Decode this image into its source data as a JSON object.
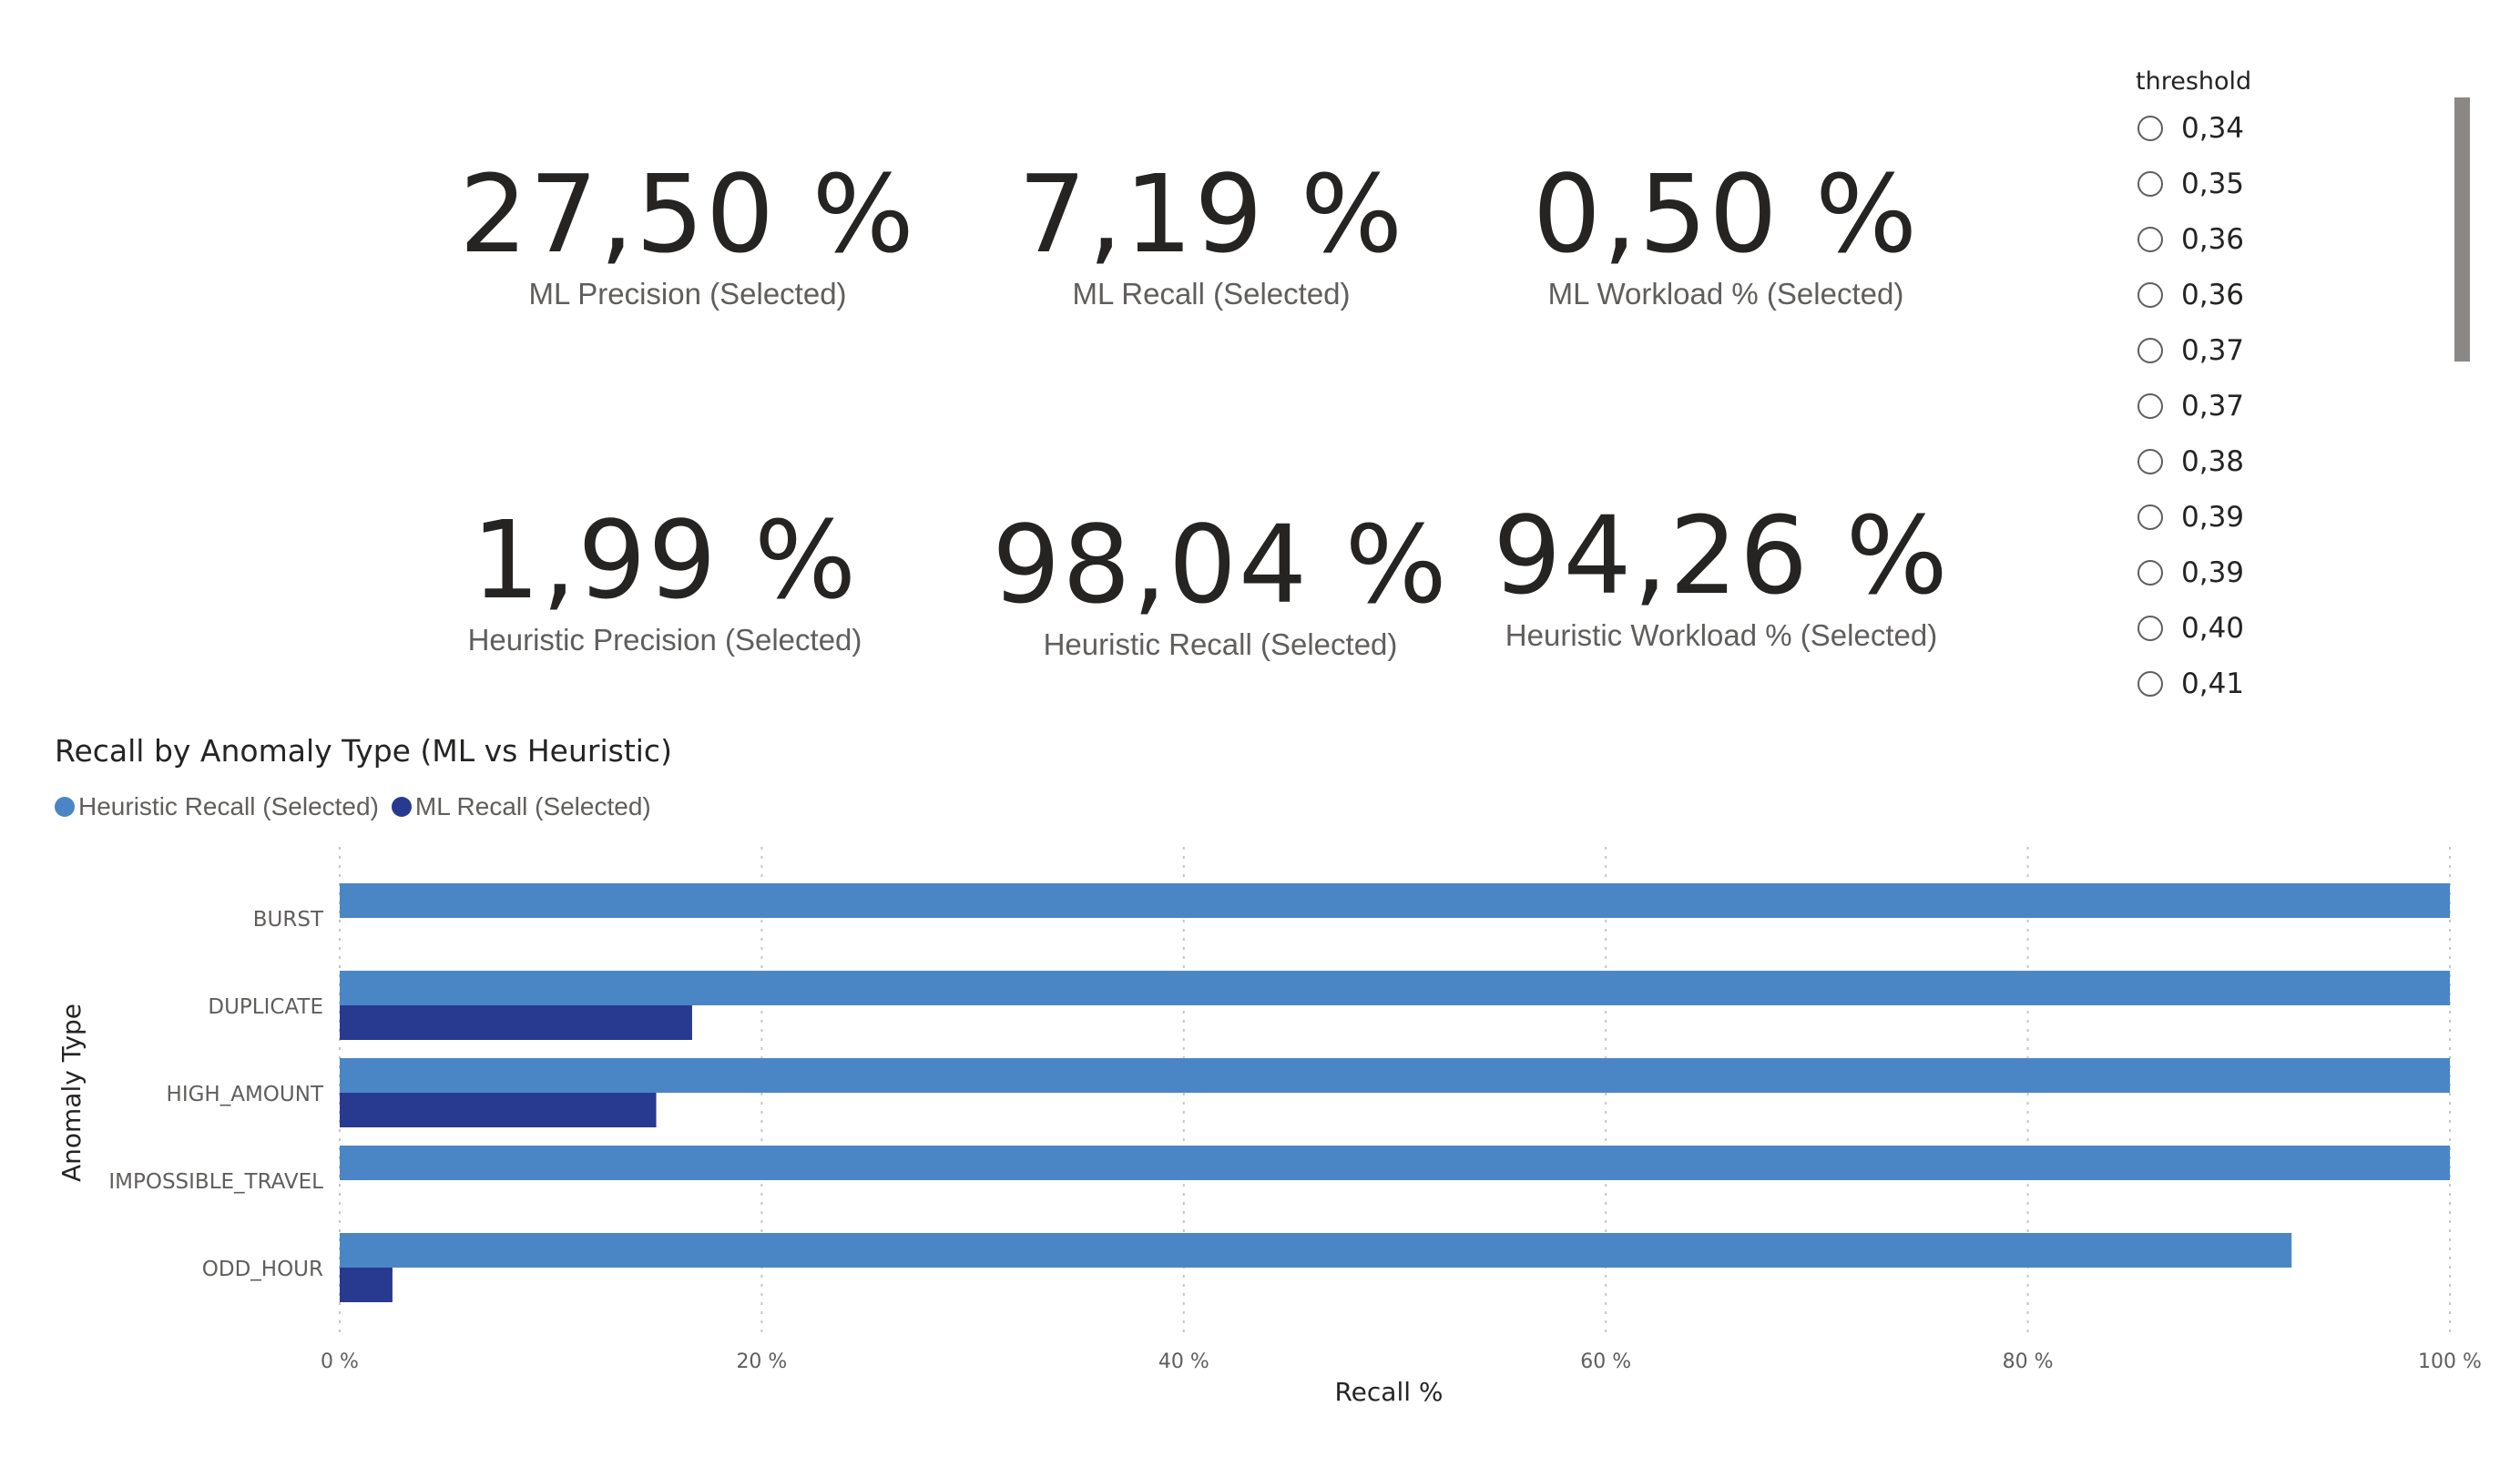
{
  "kpis": [
    {
      "value": "27,50 %",
      "label": "ML Precision (Selected)"
    },
    {
      "value": "7,19 %",
      "label": "ML Recall (Selected)"
    },
    {
      "value": "0,50 %",
      "label": "ML Workload % (Selected)"
    },
    {
      "value": "1,99 %",
      "label": "Heuristic Precision (Selected)"
    },
    {
      "value": "98,04 %",
      "label": "Heuristic Recall (Selected)"
    },
    {
      "value": "94,26 %",
      "label": "Heuristic Workload % (Selected)"
    }
  ],
  "slicer": {
    "title": "threshold",
    "options": [
      "0,34",
      "0,35",
      "0,36",
      "0,36",
      "0,37",
      "0,37",
      "0,38",
      "0,39",
      "0,39",
      "0,40",
      "0,41"
    ]
  },
  "colors": {
    "heuristic": "#4a86c6",
    "ml": "#283a8f",
    "grid": "#c8c6c4",
    "axis_text": "#605e5c"
  },
  "chart_data": {
    "type": "bar",
    "orientation": "horizontal",
    "title": "Recall by Anomaly Type (ML vs Heuristic)",
    "xlabel": "Recall %",
    "ylabel": "Anomaly Type",
    "categories": [
      "BURST",
      "DUPLICATE",
      "HIGH_AMOUNT",
      "IMPOSSIBLE_TRAVEL",
      "ODD_HOUR"
    ],
    "series": [
      {
        "name": "Heuristic Recall (Selected)",
        "values": [
          100,
          100,
          100,
          100,
          92.5
        ]
      },
      {
        "name": "ML Recall (Selected)",
        "values": [
          0,
          16.7,
          15.0,
          0,
          2.5
        ]
      }
    ],
    "xlim": [
      0,
      100
    ],
    "xticks": [
      "0 %",
      "20 %",
      "40 %",
      "60 %",
      "80 %",
      "100 %"
    ],
    "grid": true,
    "legend_position": "top-left"
  }
}
